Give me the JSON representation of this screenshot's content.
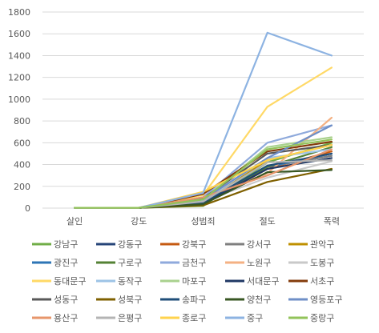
{
  "chart_data": {
    "type": "line",
    "title": "",
    "xlabel": "",
    "ylabel": "",
    "categories": [
      "살인",
      "강도",
      "성범죄",
      "절도",
      "폭력"
    ],
    "ylim": [
      0,
      1800
    ],
    "y_ticks": [
      0,
      200,
      400,
      600,
      800,
      1000,
      1200,
      1400,
      1600,
      1800
    ],
    "grid": true,
    "legend": "bottom",
    "series": [
      {
        "name": "강남구",
        "color": "#70ad47",
        "values": [
          2,
          2,
          20,
          420,
          600
        ]
      },
      {
        "name": "강동구",
        "color": "#264478",
        "values": [
          3,
          3,
          45,
          380,
          480
        ]
      },
      {
        "name": "강북구",
        "color": "#c55a11",
        "values": [
          3,
          3,
          40,
          360,
          520
        ]
      },
      {
        "name": "강서구",
        "color": "#7f7f7f",
        "values": [
          3,
          3,
          45,
          380,
          480
        ]
      },
      {
        "name": "관악구",
        "color": "#bf9000",
        "values": [
          3,
          3,
          50,
          440,
          580
        ]
      },
      {
        "name": "광진구",
        "color": "#2e75b6",
        "values": [
          2,
          2,
          40,
          380,
          500
        ]
      },
      {
        "name": "구로구",
        "color": "#548235",
        "values": [
          3,
          3,
          40,
          380,
          560
        ]
      },
      {
        "name": "금천구",
        "color": "#8faadc",
        "values": [
          2,
          2,
          100,
          600,
          760
        ]
      },
      {
        "name": "노원구",
        "color": "#f4b183",
        "values": [
          2,
          2,
          90,
          320,
          830
        ]
      },
      {
        "name": "도봉구",
        "color": "#c9c9c9",
        "values": [
          2,
          2,
          60,
          280,
          430
        ]
      },
      {
        "name": "동대문구",
        "color": "#ffd966",
        "values": [
          3,
          3,
          120,
          930,
          1290
        ]
      },
      {
        "name": "동작구",
        "color": "#9dc3e6",
        "values": [
          2,
          2,
          70,
          460,
          540
        ]
      },
      {
        "name": "마포구",
        "color": "#a9d18e",
        "values": [
          3,
          3,
          80,
          560,
          650
        ]
      },
      {
        "name": "서대문구",
        "color": "#203864",
        "values": [
          3,
          3,
          40,
          360,
          460
        ]
      },
      {
        "name": "서초구",
        "color": "#843c0c",
        "values": [
          3,
          3,
          130,
          520,
          610
        ]
      },
      {
        "name": "성동구",
        "color": "#595959",
        "values": [
          3,
          3,
          90,
          500,
          580
        ]
      },
      {
        "name": "성북구",
        "color": "#7f6000",
        "values": [
          3,
          3,
          25,
          240,
          360
        ]
      },
      {
        "name": "송파구",
        "color": "#1f4e79",
        "values": [
          3,
          3,
          50,
          390,
          500
        ]
      },
      {
        "name": "양천구",
        "color": "#385723",
        "values": [
          3,
          3,
          35,
          330,
          350
        ]
      },
      {
        "name": "영등포구",
        "color": "#6f8fc7",
        "values": [
          3,
          3,
          80,
          460,
          760
        ]
      },
      {
        "name": "용산구",
        "color": "#e7966b",
        "values": [
          3,
          3,
          100,
          300,
          540
        ]
      },
      {
        "name": "은평구",
        "color": "#b4b4b4",
        "values": [
          3,
          3,
          60,
          420,
          440
        ]
      },
      {
        "name": "종로구",
        "color": "#ffd34d",
        "values": [
          3,
          3,
          150,
          440,
          580
        ]
      },
      {
        "name": "중구",
        "color": "#8db3e2",
        "values": [
          3,
          3,
          140,
          1610,
          1400
        ]
      },
      {
        "name": "중랑구",
        "color": "#92c35a",
        "values": [
          3,
          3,
          80,
          540,
          630
        ]
      }
    ]
  }
}
